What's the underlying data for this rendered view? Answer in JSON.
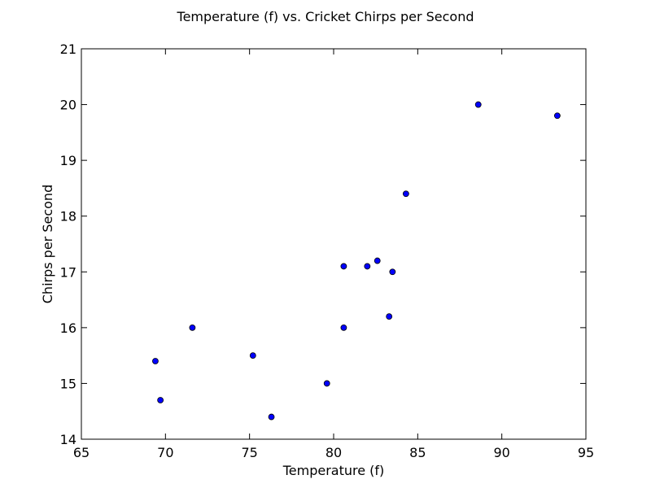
{
  "chart_data": {
    "type": "scatter",
    "title": "Temperature (f) vs. Cricket Chirps per Second",
    "xlabel": "Temperature (f)",
    "ylabel": "Chirps per Second",
    "xlim": [
      65,
      95
    ],
    "ylim": [
      14,
      21
    ],
    "xticks": [
      "65",
      "70",
      "75",
      "80",
      "85",
      "90",
      "95"
    ],
    "yticks": [
      "14",
      "15",
      "16",
      "17",
      "18",
      "19",
      "20",
      "21"
    ],
    "grid": false,
    "series": [
      {
        "color": "#0000ff",
        "points": [
          {
            "x": 88.6,
            "y": 20.0
          },
          {
            "x": 71.6,
            "y": 16.0
          },
          {
            "x": 93.3,
            "y": 19.8
          },
          {
            "x": 84.3,
            "y": 18.4
          },
          {
            "x": 80.6,
            "y": 17.1
          },
          {
            "x": 75.2,
            "y": 15.5
          },
          {
            "x": 69.7,
            "y": 14.7
          },
          {
            "x": 82.0,
            "y": 17.1
          },
          {
            "x": 69.4,
            "y": 15.4
          },
          {
            "x": 83.3,
            "y": 16.2
          },
          {
            "x": 79.6,
            "y": 15.0
          },
          {
            "x": 82.6,
            "y": 17.2
          },
          {
            "x": 80.6,
            "y": 16.0
          },
          {
            "x": 83.5,
            "y": 17.0
          },
          {
            "x": 76.3,
            "y": 14.4
          }
        ]
      }
    ]
  }
}
